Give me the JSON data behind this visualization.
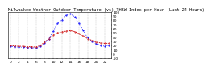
{
  "title": "Milwaukee Weather Outdoor Temperature (vs) THSW Index per Hour (Last 24 Hours)",
  "bg_color": "#ffffff",
  "plot_bg": "#ffffff",
  "grid_color": "#bbbbbb",
  "blue_color": "#0000ff",
  "red_color": "#cc0000",
  "hours": [
    0,
    1,
    2,
    3,
    4,
    5,
    6,
    7,
    8,
    9,
    10,
    11,
    12,
    13,
    14,
    15,
    16,
    17,
    18,
    19,
    20,
    21,
    22,
    23
  ],
  "temp": [
    20,
    19,
    18,
    18,
    17,
    17,
    16,
    20,
    28,
    36,
    44,
    50,
    52,
    54,
    55,
    53,
    48,
    42,
    36,
    32,
    28,
    26,
    25,
    25
  ],
  "thsw": [
    18,
    17,
    16,
    16,
    15,
    15,
    14,
    18,
    25,
    36,
    54,
    72,
    80,
    92,
    95,
    88,
    72,
    56,
    38,
    30,
    24,
    20,
    18,
    20
  ],
  "ylim_min": -10,
  "ylim_max": 100,
  "ytick_values": [
    100,
    90,
    80,
    70,
    60,
    50,
    40,
    30,
    20,
    10,
    0,
    -10
  ],
  "ytick_labels": [
    "100",
    "90",
    "80",
    "70",
    "60",
    "50",
    "40",
    "30",
    "20",
    "10",
    "0",
    "-10"
  ],
  "title_fontsize": 3.8,
  "tick_fontsize": 3.2,
  "line_width": 0.6,
  "marker_size": 1.0
}
